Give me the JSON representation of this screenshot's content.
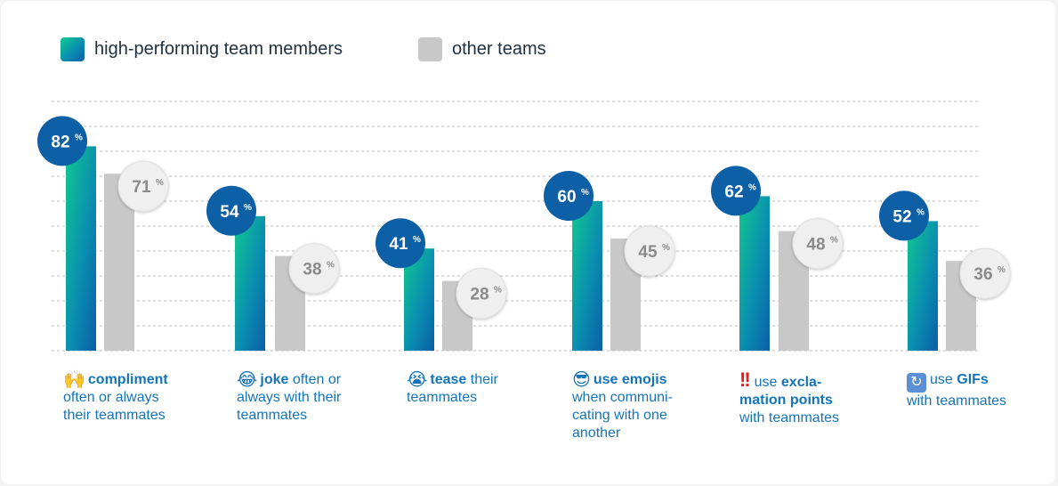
{
  "legend": {
    "high_label": "high-performing team members",
    "other_label": "other teams"
  },
  "colors": {
    "high_gradient": [
      "#10c98f",
      "#0a8fb0",
      "#0b5ea8"
    ],
    "other_bar": "#c8c8c8",
    "high_badge": "#0d5fa6",
    "other_badge": "#efefef",
    "caption": "#1574b8"
  },
  "chart_data": {
    "type": "bar",
    "ylim": [
      0,
      100
    ],
    "grid": true,
    "legend_position": "top-left",
    "value_suffix": "%",
    "categories": [
      "compliment often or always their teammates",
      "joke often or always with their teammates",
      "tease their teammates",
      "use emojis when communicating with one another",
      "use exclamation points with teammates",
      "use GIFs with teammates"
    ],
    "series": [
      {
        "name": "high-performing team members",
        "values": [
          82,
          54,
          41,
          60,
          62,
          52
        ]
      },
      {
        "name": "other teams",
        "values": [
          71,
          38,
          28,
          45,
          48,
          36
        ]
      }
    ]
  },
  "captions": [
    {
      "icon": "raised-hands-icon",
      "glyph": "🙌",
      "bold": "compliment",
      "rest": "often or always their teammates",
      "lines": [
        "often or always",
        "their teammates"
      ]
    },
    {
      "icon": "tears-of-joy-icon",
      "glyph": "😂",
      "bold": "joke",
      "rest": "often or",
      "lines": [
        "always with their",
        "teammates"
      ]
    },
    {
      "icon": "crying-face-icon",
      "glyph": "😭",
      "bold": "tease",
      "rest": "their",
      "lines": [
        "teammates"
      ]
    },
    {
      "icon": "sunglasses-face-icon",
      "glyph": "😎",
      "bold": "use emojis",
      "rest": "",
      "lines": [
        "when communi-",
        "cating with one",
        "another"
      ]
    },
    {
      "icon": "double-exclamation-icon",
      "glyph": "!!",
      "pre": "use",
      "bold": "excla-",
      "lines": [
        "mation points",
        "with teammates"
      ]
    },
    {
      "icon": "gif-refresh-icon",
      "glyph": "↻",
      "pre": "use",
      "bold": "GIFs",
      "lines": [
        "with teammates"
      ]
    }
  ]
}
